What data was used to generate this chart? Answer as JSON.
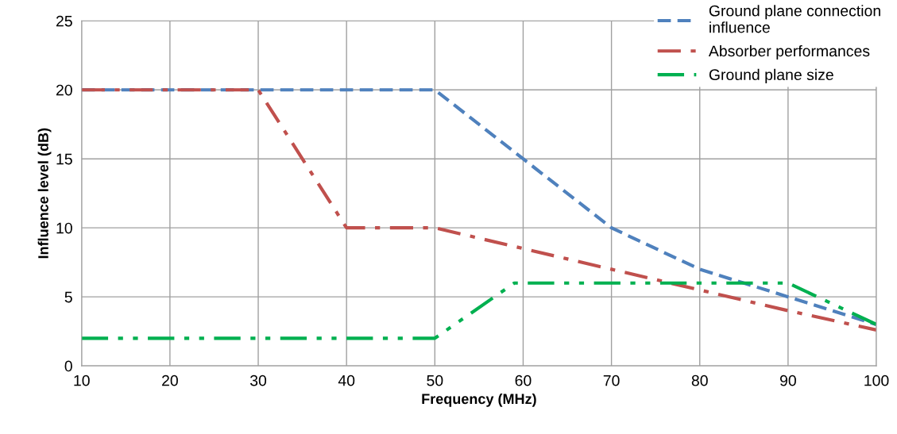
{
  "chart_data": {
    "type": "line",
    "xlabel": "Frequency (MHz)",
    "ylabel": "Influence level (dB)",
    "xlim": [
      10,
      100
    ],
    "xticks": [
      10,
      20,
      30,
      40,
      50,
      60,
      70,
      80,
      90,
      100
    ],
    "ylim": [
      0,
      25
    ],
    "yticks": [
      0,
      5,
      10,
      15,
      20,
      25
    ],
    "grid": true,
    "legend": "top right",
    "marker": "none",
    "series": [
      {
        "name": "Ground plane connection\ninfluence",
        "color": "#4f81bd",
        "line_style": "dashed",
        "x": [
          10,
          50,
          60,
          70,
          80,
          85,
          90,
          100
        ],
        "values": [
          20,
          20,
          15,
          10,
          7,
          6,
          5,
          3
        ]
      },
      {
        "name": "Absorber performances",
        "color": "#c0504d",
        "line_style": "dashdot",
        "x": [
          10,
          30,
          40,
          50,
          60,
          70,
          80,
          90,
          100
        ],
        "values": [
          20,
          20,
          10,
          10,
          8.5,
          7,
          5.5,
          4,
          2.6
        ]
      },
      {
        "name": "Ground plane size",
        "color": "#00b050",
        "line_style": "dashdotdot",
        "x": [
          10,
          50,
          59,
          90,
          100
        ],
        "values": [
          2,
          2,
          6,
          6,
          3
        ]
      }
    ]
  }
}
